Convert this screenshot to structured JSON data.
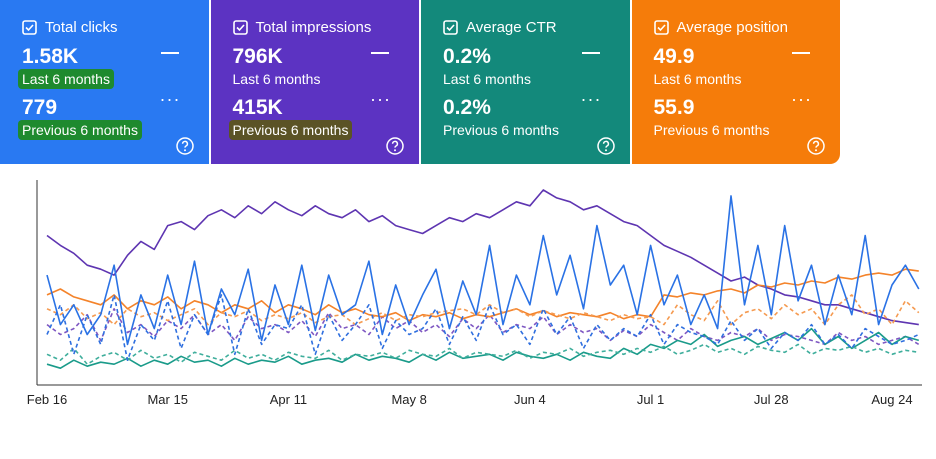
{
  "cards": [
    {
      "title": "Total clicks",
      "current_value": "1.58K",
      "current_label": "Last 6 months",
      "previous_value": "779",
      "previous_label": "Previous 6 months",
      "color": "#2979f2",
      "current_highlight": "#1e8a2e",
      "previous_highlight": "#1e8a2e"
    },
    {
      "title": "Total impressions",
      "current_value": "796K",
      "current_label": "Last 6 months",
      "previous_value": "415K",
      "previous_label": "Previous 6 months",
      "color": "#5c33c2",
      "current_highlight": null,
      "previous_highlight": "#5b5326"
    },
    {
      "title": "Average CTR",
      "current_value": "0.2%",
      "current_label": "Last 6 months",
      "previous_value": "0.2%",
      "previous_label": "Previous 6 months",
      "color": "#13897b",
      "current_highlight": null,
      "previous_highlight": null
    },
    {
      "title": "Average position",
      "current_value": "49.9",
      "current_label": "Last 6 months",
      "previous_value": "55.9",
      "previous_label": "Previous 6 months",
      "color": "#f57c0a",
      "current_highlight": null,
      "previous_highlight": null
    }
  ],
  "chart_data": {
    "type": "line",
    "categories": [
      "Feb 16",
      null,
      null,
      null,
      null,
      null,
      null,
      null,
      null,
      "Mar 15",
      null,
      null,
      null,
      null,
      null,
      null,
      null,
      null,
      "Apr 11",
      null,
      null,
      null,
      null,
      null,
      null,
      null,
      null,
      "May 8",
      null,
      null,
      null,
      null,
      null,
      null,
      null,
      null,
      "Jun 4",
      null,
      null,
      null,
      null,
      null,
      null,
      null,
      null,
      "Jul 1",
      null,
      null,
      null,
      null,
      null,
      null,
      null,
      null,
      "Jul 28",
      null,
      null,
      null,
      null,
      null,
      null,
      null,
      null,
      "Aug 24",
      null,
      null
    ],
    "ylim": [
      0,
      100
    ],
    "series": [
      {
        "color": "#5e35b1",
        "dashed": false,
        "values": [
          75,
          70,
          66,
          60,
          58,
          55,
          65,
          72,
          68,
          80,
          82,
          78,
          85,
          88,
          84,
          90,
          86,
          92,
          88,
          85,
          90,
          86,
          84,
          88,
          82,
          85,
          80,
          78,
          76,
          80,
          84,
          82,
          86,
          84,
          88,
          92,
          90,
          98,
          94,
          92,
          88,
          90,
          86,
          82,
          80,
          75,
          70,
          67,
          64,
          60,
          56,
          52,
          54,
          50,
          48,
          45,
          44,
          42,
          40,
          40,
          38,
          36,
          34,
          32,
          31,
          30
        ]
      },
      {
        "color": "#7e57c2",
        "dashed": true,
        "values": [
          30,
          25,
          28,
          35,
          22,
          38,
          26,
          30,
          24,
          32,
          28,
          35,
          25,
          30,
          22,
          34,
          28,
          30,
          26,
          32,
          24,
          36,
          28,
          30,
          25,
          34,
          28,
          32,
          26,
          30,
          24,
          33,
          28,
          35,
          26,
          30,
          28,
          34,
          25,
          30,
          26,
          28,
          22,
          27,
          24,
          30,
          26,
          22,
          28,
          24,
          22,
          26,
          24,
          28,
          22,
          25,
          24,
          22,
          20,
          26,
          22,
          24,
          20,
          22,
          24,
          20
        ]
      },
      {
        "color": "#f4832a",
        "dashed": false,
        "values": [
          45,
          48,
          44,
          42,
          40,
          45,
          38,
          42,
          40,
          44,
          38,
          42,
          40,
          36,
          40,
          38,
          42,
          36,
          40,
          38,
          35,
          40,
          36,
          38,
          35,
          34,
          36,
          32,
          35,
          34,
          36,
          33,
          35,
          34,
          36,
          38,
          35,
          37,
          34,
          36,
          35,
          34,
          36,
          33,
          35,
          34,
          45,
          44,
          46,
          45,
          47,
          48,
          46,
          50,
          49,
          51,
          50,
          52,
          51,
          54,
          53,
          55,
          56,
          55,
          58,
          57
        ]
      },
      {
        "color": "#f59a50",
        "dashed": true,
        "values": [
          38,
          35,
          40,
          33,
          36,
          30,
          38,
          34,
          36,
          32,
          35,
          38,
          30,
          36,
          34,
          37,
          32,
          35,
          33,
          36,
          31,
          34,
          35,
          30,
          33,
          36,
          32,
          35,
          34,
          36,
          37,
          38,
          35,
          40,
          36,
          38,
          34,
          37,
          35,
          33,
          36,
          34,
          32,
          35,
          33,
          34,
          30,
          40,
          35,
          32,
          42,
          30,
          36,
          38,
          33,
          40,
          35,
          38,
          30,
          40,
          45,
          35,
          38,
          30,
          42,
          36
        ]
      },
      {
        "color": "#1a9b8a",
        "dashed": false,
        "values": [
          10,
          8,
          12,
          9,
          11,
          10,
          13,
          9,
          12,
          10,
          14,
          11,
          12,
          9,
          13,
          10,
          12,
          11,
          14,
          10,
          12,
          13,
          11,
          15,
          12,
          14,
          13,
          11,
          15,
          12,
          16,
          13,
          14,
          15,
          12,
          16,
          14,
          13,
          15,
          12,
          16,
          14,
          13,
          18,
          15,
          20,
          18,
          22,
          20,
          25,
          19,
          22,
          24,
          20,
          23,
          26,
          22,
          28,
          20,
          24,
          18,
          22,
          26,
          20,
          24,
          22
        ]
      },
      {
        "color": "#3fae9c",
        "dashed": true,
        "values": [
          15,
          12,
          18,
          10,
          14,
          16,
          12,
          17,
          13,
          15,
          11,
          16,
          14,
          12,
          17,
          13,
          15,
          12,
          16,
          14,
          13,
          17,
          12,
          15,
          14,
          16,
          13,
          17,
          15,
          14,
          18,
          13,
          16,
          15,
          14,
          17,
          13,
          16,
          15,
          18,
          14,
          16,
          17,
          15,
          18,
          16,
          19,
          15,
          17,
          20,
          16,
          18,
          15,
          19,
          17,
          16,
          20,
          15,
          18,
          17,
          19,
          16,
          18,
          15,
          17,
          16
        ]
      },
      {
        "color": "#2f6fdf",
        "dashed": true,
        "values": [
          25,
          40,
          15,
          35,
          20,
          45,
          12,
          30,
          22,
          42,
          18,
          35,
          25,
          45,
          15,
          38,
          20,
          30,
          28,
          40,
          15,
          35,
          22,
          30,
          40,
          18,
          32,
          25,
          28,
          38,
          20,
          34,
          22,
          40,
          25,
          30,
          20,
          38,
          25,
          34,
          18,
          30,
          22,
          28,
          24,
          35,
          20,
          30,
          26,
          24,
          20,
          32,
          22,
          28,
          18,
          26,
          22,
          30,
          20,
          25,
          18,
          28,
          24,
          20,
          22,
          25
        ]
      },
      {
        "color": "#2a72e5",
        "dashed": false,
        "values": [
          55,
          30,
          40,
          25,
          35,
          60,
          20,
          45,
          28,
          55,
          30,
          62,
          25,
          48,
          35,
          58,
          22,
          50,
          30,
          60,
          27,
          55,
          35,
          40,
          62,
          25,
          50,
          30,
          45,
          58,
          28,
          52,
          35,
          70,
          30,
          55,
          40,
          75,
          45,
          65,
          38,
          80,
          50,
          60,
          35,
          70,
          40,
          55,
          30,
          45,
          28,
          95,
          40,
          70,
          35,
          80,
          42,
          60,
          30,
          55,
          35,
          75,
          30,
          50,
          60,
          48
        ]
      }
    ]
  }
}
